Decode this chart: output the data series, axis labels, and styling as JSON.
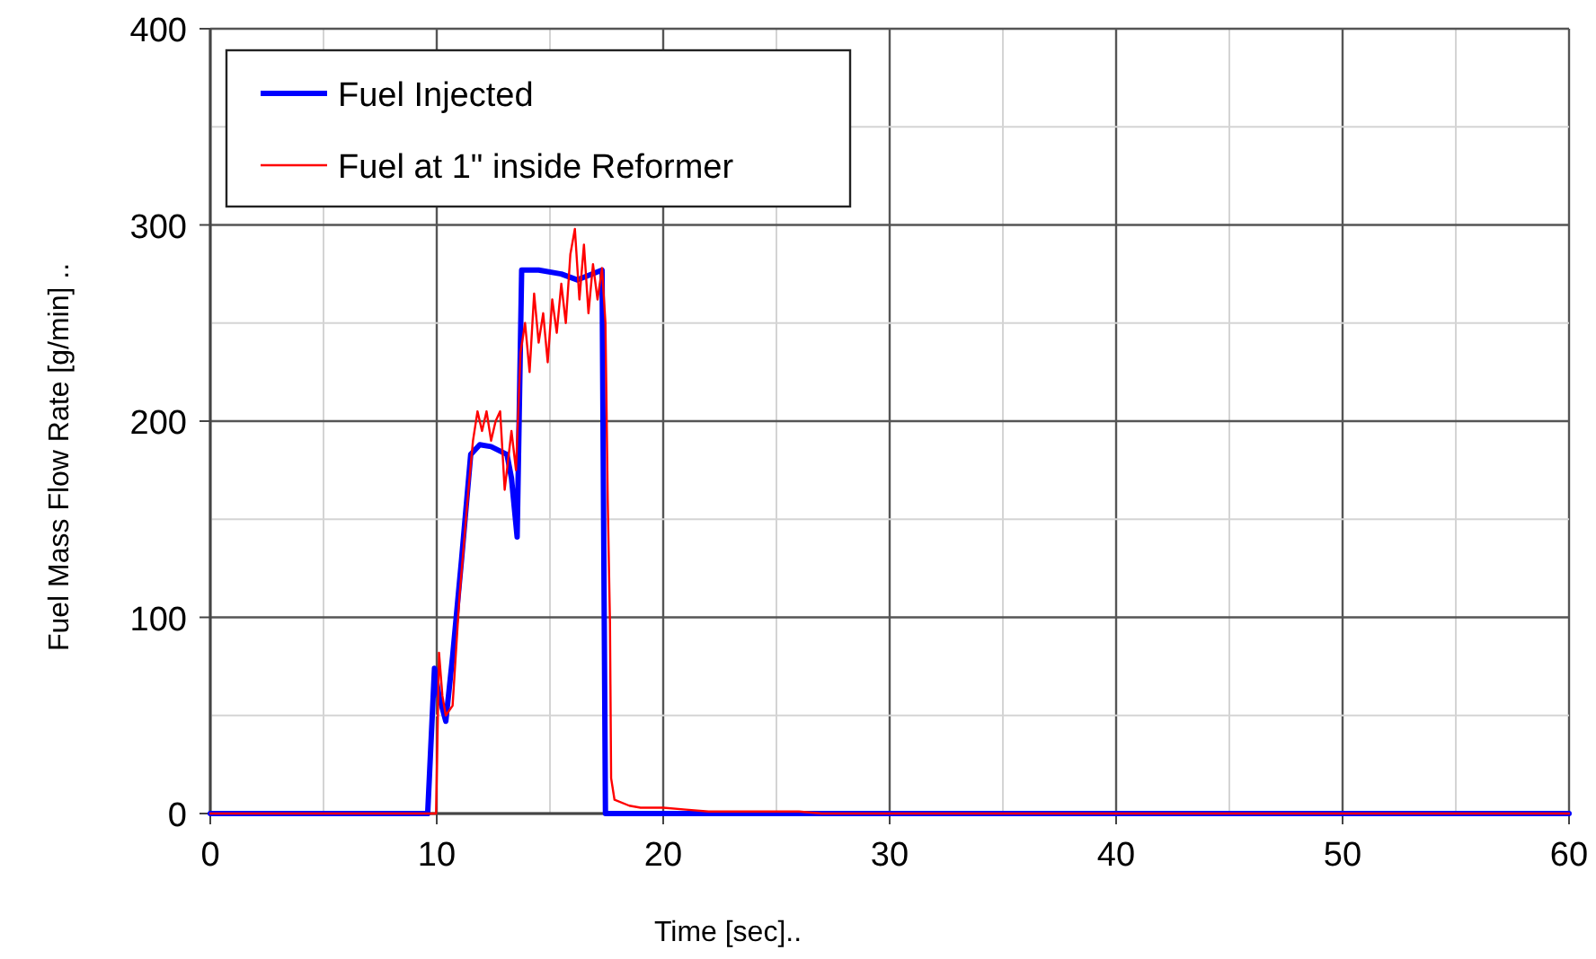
{
  "chart_data": {
    "type": "line",
    "xlabel": "Time [sec]..",
    "ylabel": "Fuel Mass Flow Rate [g/min] ..",
    "xlim": [
      0,
      60
    ],
    "ylim": [
      0,
      400
    ],
    "xticks": [
      0,
      {
        "value": 5,
        "label": null
      },
      10,
      {
        "value": 15,
        "label": null
      },
      20,
      {
        "value": 25,
        "label": null
      },
      30,
      {
        "value": 35,
        "label": null
      },
      40,
      {
        "value": 45,
        "label": null
      },
      50,
      {
        "value": 55,
        "label": null
      },
      60
    ],
    "yticks": [
      0,
      {
        "value": 50,
        "label": null
      },
      100,
      {
        "value": 150,
        "label": null
      },
      200,
      {
        "value": 250,
        "label": null
      },
      300,
      {
        "value": 350,
        "label": null
      },
      400
    ],
    "grid": true,
    "legend": "top left",
    "line_style": "solid",
    "series": [
      {
        "name": "Fuel Injected",
        "color": "#0000ff",
        "x": [
          0,
          9.6,
          9.9,
          10.1,
          10.4,
          10.7,
          11.1,
          11.5,
          11.9,
          12.4,
          13.1,
          13.3,
          13.55,
          13.75,
          14.5,
          15.5,
          16.2,
          17.3,
          17.45,
          18,
          30,
          60
        ],
        "values": [
          0,
          0,
          74,
          60,
          47,
          80,
          130,
          183,
          188,
          187,
          183,
          171,
          141,
          277,
          277,
          275,
          272,
          277,
          0,
          0,
          0,
          0
        ]
      },
      {
        "name": "Fuel at 1\" inside Reformer",
        "color": "#ff0000",
        "x": [
          0,
          9.97,
          10.1,
          10.25,
          10.4,
          10.7,
          11,
          11.4,
          11.6,
          11.8,
          12,
          12.2,
          12.4,
          12.6,
          12.8,
          13,
          13.3,
          13.5,
          13.7,
          13.9,
          14.1,
          14.3,
          14.5,
          14.7,
          14.9,
          15.1,
          15.3,
          15.5,
          15.7,
          15.9,
          16.1,
          16.3,
          16.5,
          16.7,
          16.9,
          17.1,
          17.3,
          17.45,
          17.55,
          17.65,
          17.7,
          17.85,
          18.5,
          19,
          20,
          21,
          22,
          26,
          27,
          60
        ],
        "values": [
          0,
          0,
          82,
          60,
          50,
          55,
          110,
          165,
          190,
          205,
          195,
          205,
          190,
          200,
          205,
          165,
          195,
          175,
          235,
          250,
          225,
          265,
          240,
          255,
          230,
          262,
          245,
          270,
          250,
          285,
          298,
          262,
          290,
          255,
          280,
          262,
          278,
          250,
          160,
          97,
          18,
          7,
          4,
          3,
          3,
          2,
          1,
          1,
          0,
          0
        ]
      }
    ]
  }
}
